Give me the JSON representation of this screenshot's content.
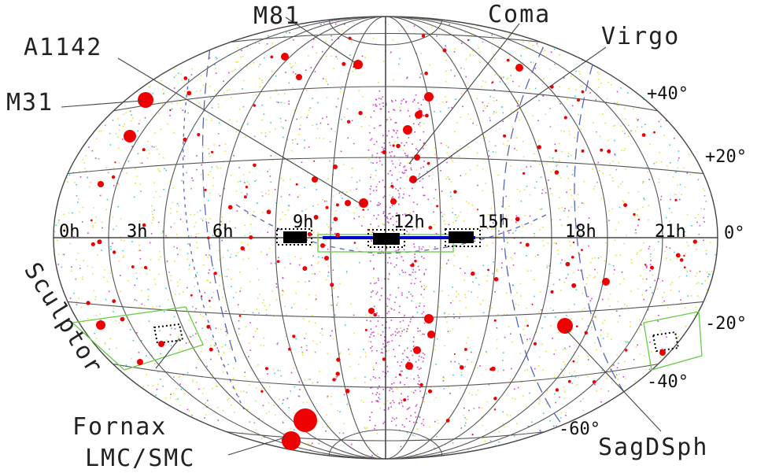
{
  "map": {
    "projection": "Aitoff",
    "ra_labels": [
      "0h",
      "3h",
      "6h",
      "9h",
      "12h",
      "15h",
      "18h",
      "21h"
    ],
    "dec_labels": [
      "+40°",
      "+20°",
      "0°",
      "-20°",
      "-40°",
      "-60°"
    ],
    "objects": [
      {
        "name": "M81"
      },
      {
        "name": "Coma"
      },
      {
        "name": "A1142"
      },
      {
        "name": "Virgo"
      },
      {
        "name": "M31"
      },
      {
        "name": "Sculptor"
      },
      {
        "name": "Fornax"
      },
      {
        "name": "LMC/SMC"
      },
      {
        "name": "SagDSph"
      }
    ],
    "colors": {
      "grid": "#555555",
      "galaxy_marker": "#ee0000",
      "survey_stripe": "#0000cc",
      "field_box": "#66cc44",
      "dashed_curves": "#5566bb",
      "dots_yellow": "#e8e040",
      "dots_cyan": "#40c8d8",
      "dots_magenta": "#cc44cc"
    }
  }
}
